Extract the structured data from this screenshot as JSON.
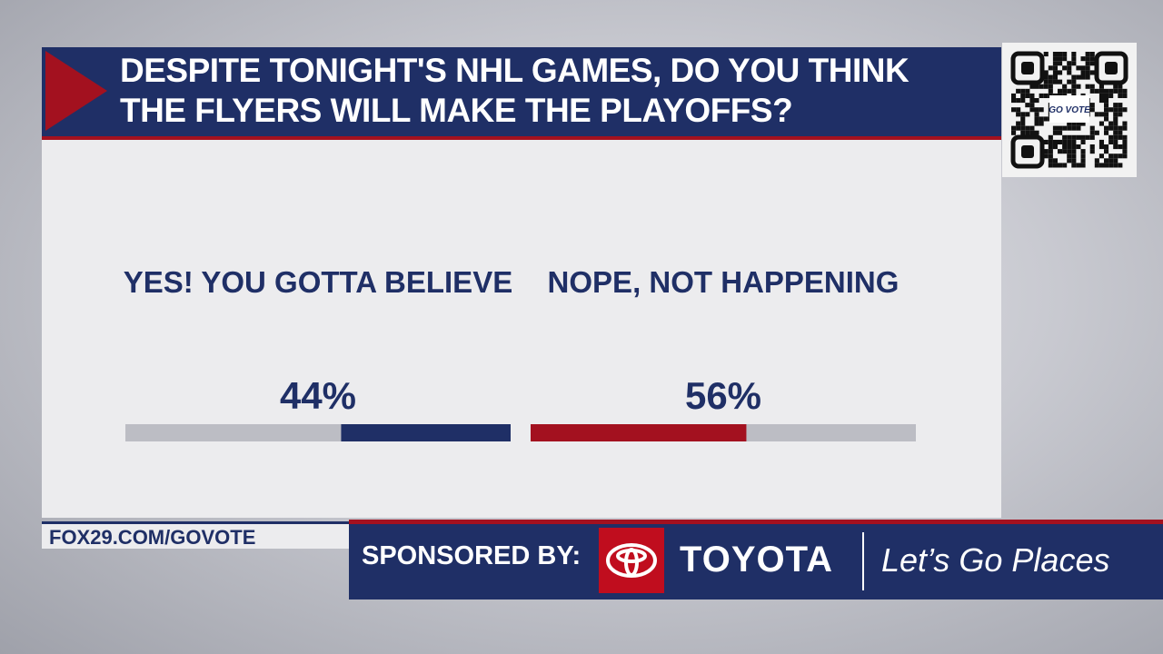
{
  "chart_data": {
    "type": "poll-bar",
    "title": "DESPITE TONIGHT'S NHL GAMES, DO YOU THINK THE FLYERS WILL MAKE THE PLAYOFFS?",
    "categories": [
      "YES! YOU GOTTA BELIEVE",
      "NOPE, NOT HAPPENING"
    ],
    "values": [
      44,
      56
    ],
    "value_labels": [
      "44%",
      "56%"
    ],
    "colors": [
      "#1f2f66",
      "#a3111f"
    ],
    "xlim": [
      0,
      100
    ]
  },
  "qr_label": "GO VOTE",
  "url": "FOX29.COM/GOVOTE",
  "sponsor": {
    "label": "SPONSORED BY:",
    "brand": "TOYOTA",
    "tagline": "Let’s Go Places"
  }
}
